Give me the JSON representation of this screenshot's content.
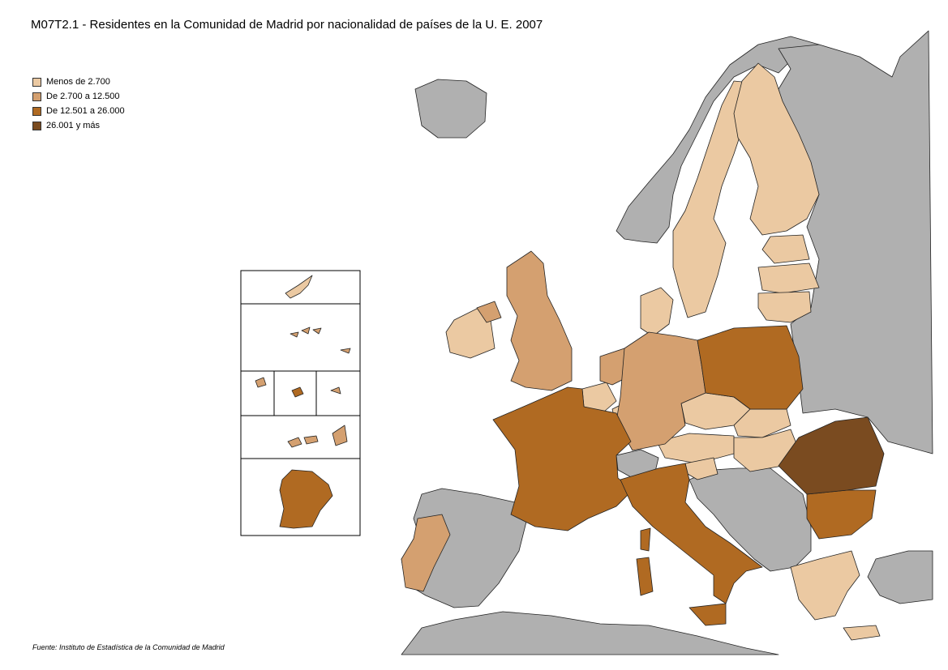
{
  "title": "M07T2.1 - Residentes en la Comunidad de Madrid por nacionalidad de países de la U. E. 2007",
  "legend": [
    {
      "label": "Menos de 2.700",
      "color": "#ebc9a2"
    },
    {
      "label": "De 2.700 a 12.500",
      "color": "#d4a070"
    },
    {
      "label": "De 12.501 a 26.000",
      "color": "#b06a22"
    },
    {
      "label": "26.001 y más",
      "color": "#7a4b20"
    }
  ],
  "colors": {
    "non_eu": "#b0b0b0",
    "sea": "#ffffff"
  },
  "source": "Fuente: Instituto de Estadística de la Comunidad de Madrid"
}
